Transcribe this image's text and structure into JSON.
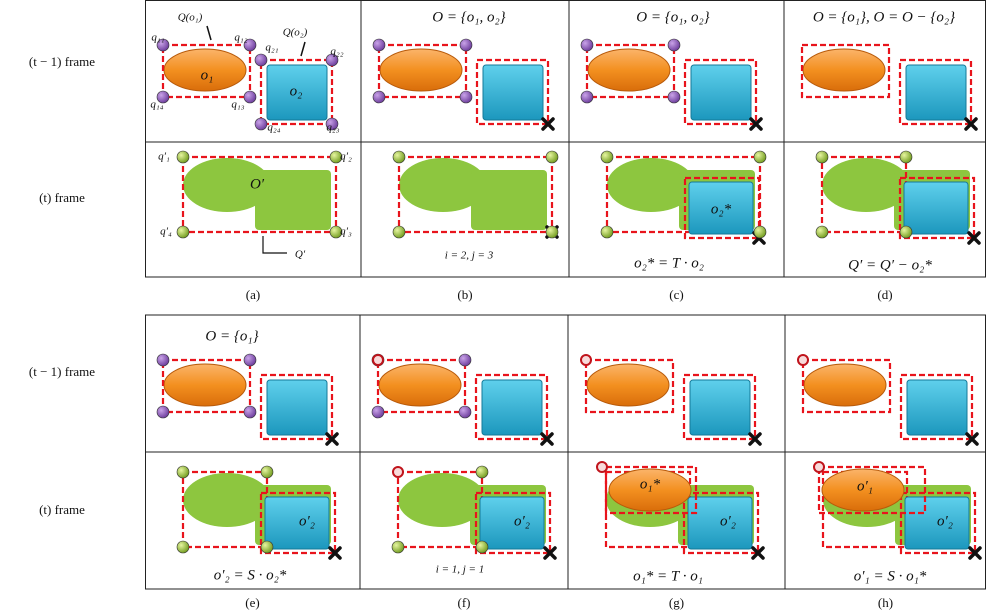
{
  "row_labels": [
    "(t − 1) frame",
    "(t) frame",
    "(t − 1) frame",
    "(t) frame"
  ],
  "panels": [
    {
      "caption": "(a)",
      "labels": [
        "Q(o₁)",
        "Q(o₂)",
        "q₁₁",
        "q₁₂",
        "q₁₃",
        "q₁₄",
        "q₂₁",
        "q₂₂",
        "q₂₃",
        "q₂₄",
        "o₁",
        "o₂",
        "q′₁",
        "q′₂",
        "q′₃",
        "q′₄",
        "O′",
        "Q′"
      ]
    },
    {
      "caption": "(b)",
      "labels": [
        "O = {o₁, o₂}",
        "i = 2, j = 3"
      ]
    },
    {
      "caption": "(c)",
      "labels": [
        "O = {o₁, o₂}",
        "o₂*",
        "o₂* = T · o₂"
      ]
    },
    {
      "caption": "(d)",
      "labels": [
        "O = {o₁}, O = O − {o₂}",
        "Q′ = Q′ − o₂*"
      ]
    },
    {
      "caption": "(e)",
      "labels": [
        "O = {o₁}",
        "o′₂",
        "o′₂ = S · o₂*"
      ]
    },
    {
      "caption": "(f)",
      "labels": [
        "o′₂",
        "i = 1, j = 1"
      ]
    },
    {
      "caption": "(g)",
      "labels": [
        "o₁*",
        "o′₂",
        "o₁* = T · o₁"
      ]
    },
    {
      "caption": "(h)",
      "labels": [
        "o′₁",
        "o′₂",
        "o′₁ = S · o₁*"
      ]
    }
  ]
}
